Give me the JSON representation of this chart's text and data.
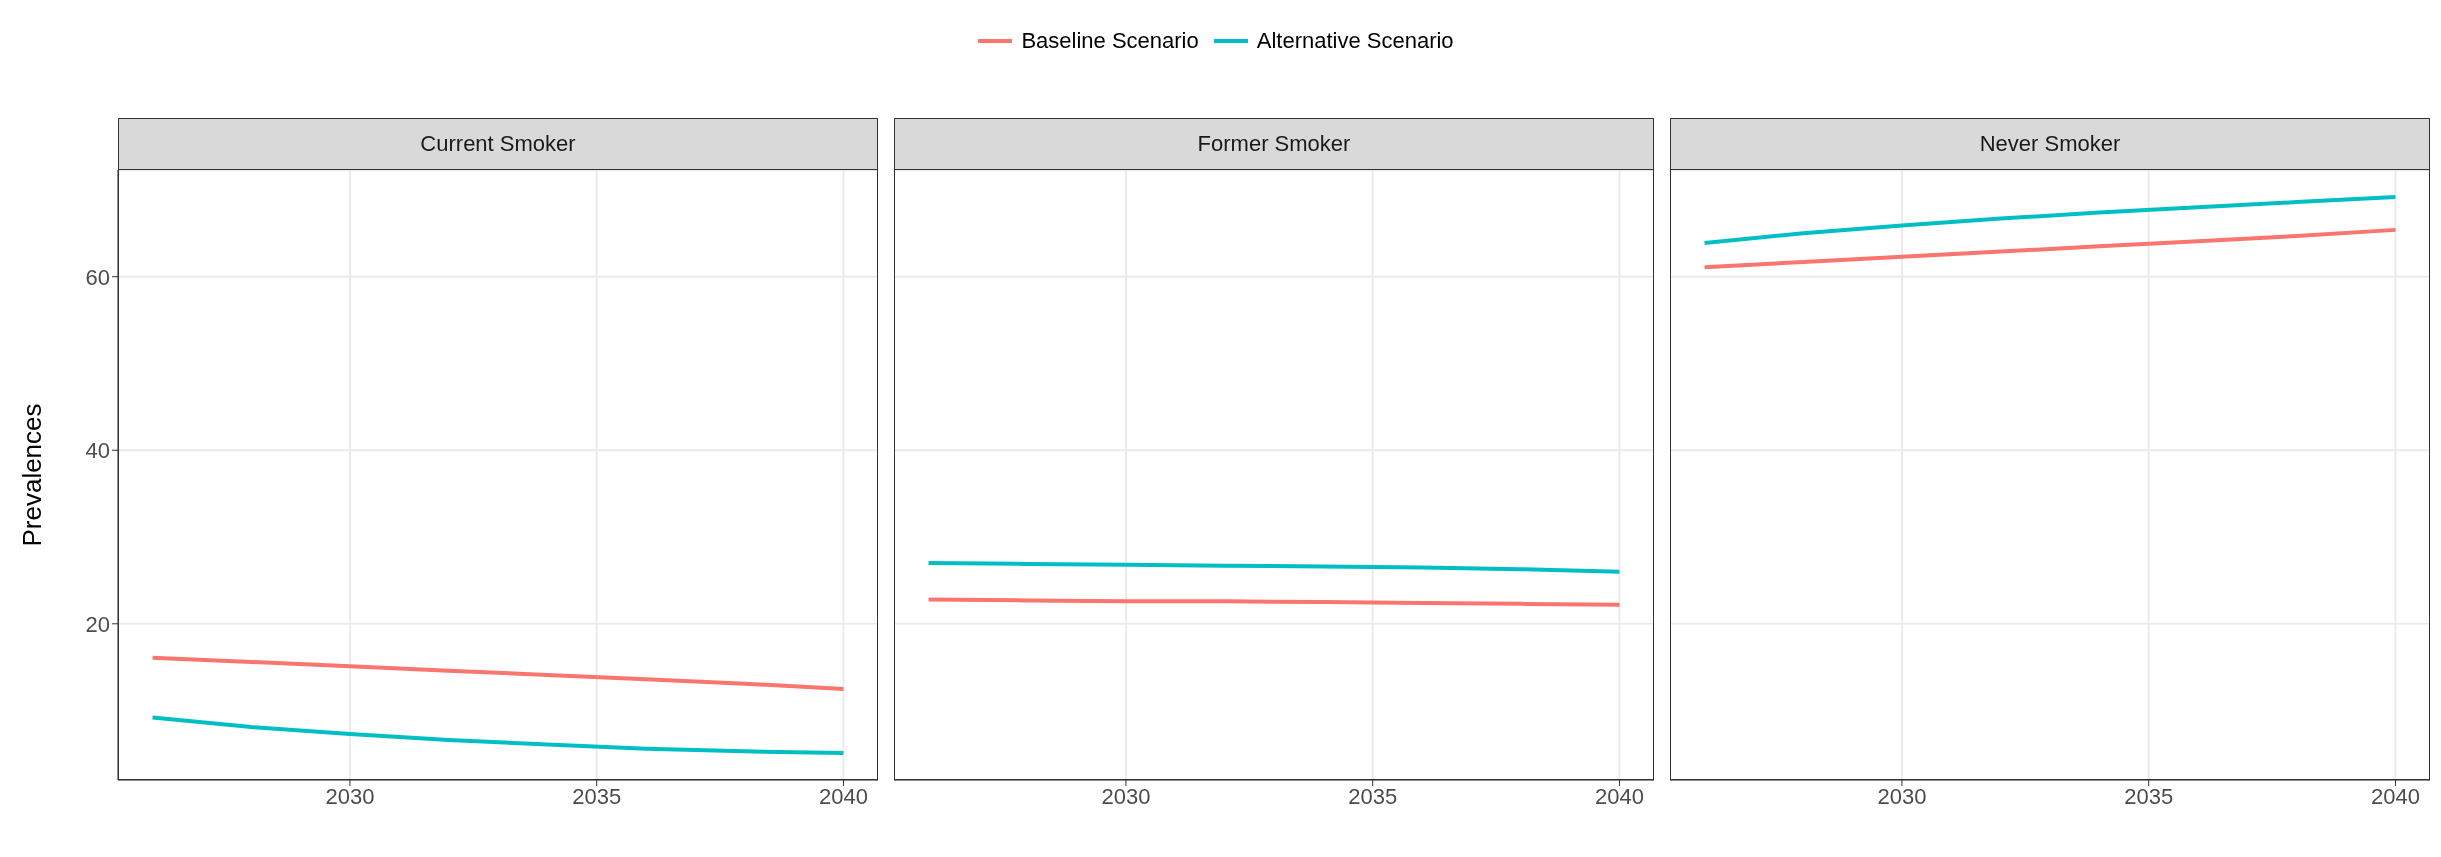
{
  "chart_data": [
    {
      "type": "line",
      "title": "Current Smoker",
      "ylabel": "Prevalences",
      "x": [
        2026,
        2028,
        2030,
        2032,
        2034,
        2036,
        2038,
        2040
      ],
      "xlim": [
        2025.3,
        2040.7
      ],
      "xticks": [
        2030,
        2035,
        2040
      ],
      "ylim": [
        2,
        72.3
      ],
      "yticks": [
        20,
        40,
        60
      ],
      "grid": true,
      "legend": "top",
      "series": [
        {
          "name": "Baseline Scenario",
          "color": "#f8766d",
          "values": [
            16.1,
            15.6,
            15.1,
            14.6,
            14.1,
            13.6,
            13.1,
            12.5
          ]
        },
        {
          "name": "Alternative Scenario",
          "color": "#00bfc4",
          "values": [
            9.2,
            8.1,
            7.3,
            6.6,
            6.1,
            5.6,
            5.3,
            5.1
          ]
        }
      ]
    },
    {
      "type": "line",
      "title": "Former Smoker",
      "x": [
        2026,
        2028,
        2030,
        2032,
        2034,
        2036,
        2038,
        2040
      ],
      "xlim": [
        2025.3,
        2040.7
      ],
      "xticks": [
        2030,
        2035,
        2040
      ],
      "ylim": [
        2,
        72.3
      ],
      "yticks": [
        20,
        40,
        60
      ],
      "grid": true,
      "tick_labels": "x",
      "series": [
        {
          "color": "#f8766d",
          "values": [
            22.8,
            22.7,
            22.6,
            22.6,
            22.5,
            22.4,
            22.3,
            22.2
          ]
        },
        {
          "color": "#00bfc4",
          "values": [
            27.0,
            26.9,
            26.8,
            26.7,
            26.6,
            26.5,
            26.3,
            26.0
          ]
        }
      ]
    },
    {
      "type": "line",
      "title": "Never Smoker",
      "x": [
        2026,
        2028,
        2030,
        2032,
        2034,
        2036,
        2038,
        2040
      ],
      "xlim": [
        2025.3,
        2040.7
      ],
      "xticks": [
        2030,
        2035,
        2040
      ],
      "ylim": [
        2,
        72.3
      ],
      "yticks": [
        20,
        40,
        60
      ],
      "grid": true,
      "tick_labels": "x",
      "series": [
        {
          "color": "#f8766d",
          "values": [
            61.1,
            61.7,
            62.3,
            62.9,
            63.5,
            64.1,
            64.7,
            65.4
          ]
        },
        {
          "color": "#00bfc4",
          "values": [
            63.9,
            65.0,
            65.9,
            66.7,
            67.4,
            68.0,
            68.6,
            69.2
          ]
        }
      ]
    }
  ]
}
